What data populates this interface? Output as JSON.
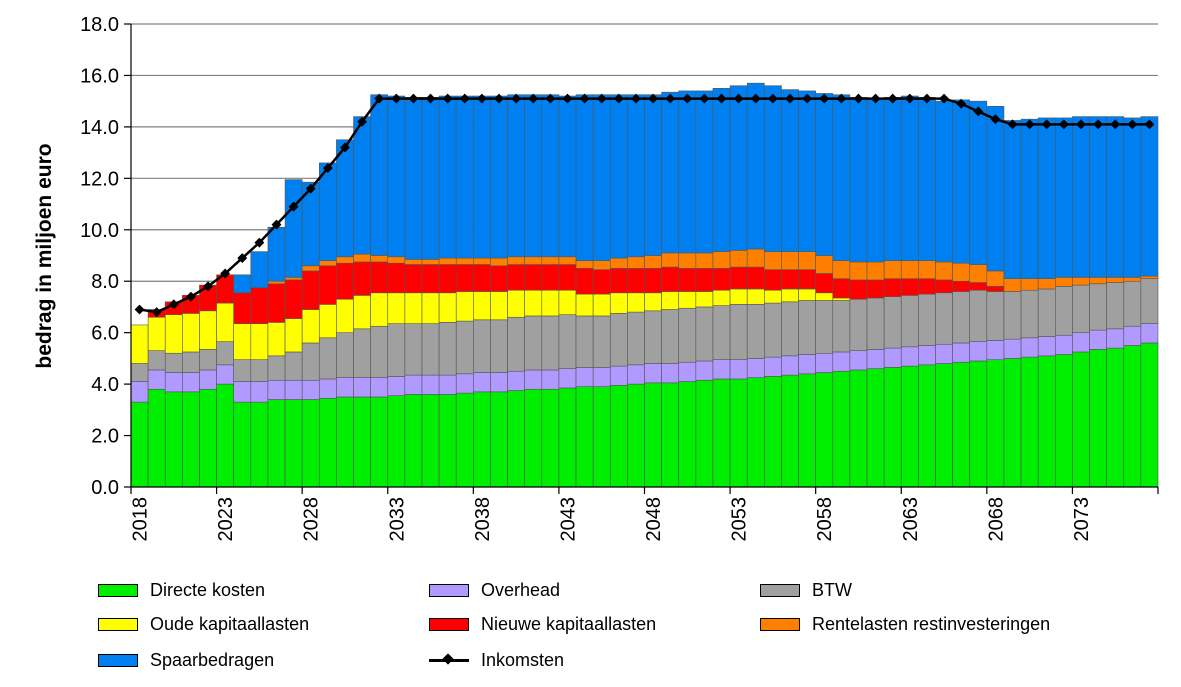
{
  "chart_data": {
    "type": "bar",
    "stacked": true,
    "title": "",
    "xlabel": "",
    "ylabel": "bedrag in miljoen euro",
    "ylim": [
      0,
      18
    ],
    "yticks": [
      "0.0",
      "2.0",
      "4.0",
      "6.0",
      "8.0",
      "10.0",
      "12.0",
      "14.0",
      "16.0",
      "18.0"
    ],
    "xticks": [
      "2018",
      "2023",
      "2028",
      "2033",
      "2038",
      "2043",
      "2048",
      "2053",
      "2058",
      "2063",
      "2068",
      "2073"
    ],
    "grid": "horizontal",
    "legend_position": "bottom",
    "x": [
      2018,
      2019,
      2020,
      2021,
      2022,
      2023,
      2024,
      2025,
      2026,
      2027,
      2028,
      2029,
      2030,
      2031,
      2032,
      2033,
      2034,
      2035,
      2036,
      2037,
      2038,
      2039,
      2040,
      2041,
      2042,
      2043,
      2044,
      2045,
      2046,
      2047,
      2048,
      2049,
      2050,
      2051,
      2052,
      2053,
      2054,
      2055,
      2056,
      2057,
      2058,
      2059,
      2060,
      2061,
      2062,
      2063,
      2064,
      2065,
      2066,
      2067,
      2068,
      2069,
      2070,
      2071,
      2072,
      2073,
      2074,
      2075,
      2076,
      2077
    ],
    "series": [
      {
        "name": "Directe kosten",
        "color": "#00ee00",
        "values": [
          3.3,
          3.8,
          3.7,
          3.7,
          3.8,
          4.0,
          3.3,
          3.3,
          3.4,
          3.4,
          3.4,
          3.45,
          3.5,
          3.5,
          3.5,
          3.55,
          3.6,
          3.6,
          3.6,
          3.65,
          3.7,
          3.7,
          3.75,
          3.8,
          3.8,
          3.85,
          3.9,
          3.9,
          3.95,
          4.0,
          4.05,
          4.05,
          4.1,
          4.15,
          4.2,
          4.2,
          4.25,
          4.3,
          4.35,
          4.4,
          4.45,
          4.5,
          4.55,
          4.6,
          4.65,
          4.7,
          4.75,
          4.8,
          4.85,
          4.9,
          4.95,
          5.0,
          5.05,
          5.1,
          5.15,
          5.25,
          5.35,
          5.4,
          5.5,
          5.6
        ]
      },
      {
        "name": "Overhead",
        "color": "#b09aff",
        "values": [
          0.8,
          0.75,
          0.75,
          0.75,
          0.75,
          0.75,
          0.8,
          0.8,
          0.75,
          0.75,
          0.75,
          0.75,
          0.75,
          0.75,
          0.75,
          0.75,
          0.75,
          0.75,
          0.75,
          0.75,
          0.75,
          0.75,
          0.75,
          0.75,
          0.75,
          0.75,
          0.75,
          0.75,
          0.75,
          0.75,
          0.75,
          0.75,
          0.75,
          0.75,
          0.75,
          0.75,
          0.75,
          0.75,
          0.75,
          0.75,
          0.75,
          0.75,
          0.75,
          0.75,
          0.75,
          0.75,
          0.75,
          0.75,
          0.75,
          0.75,
          0.75,
          0.75,
          0.75,
          0.75,
          0.75,
          0.75,
          0.75,
          0.75,
          0.75,
          0.75
        ]
      },
      {
        "name": "BTW",
        "color": "#a0a0a0",
        "values": [
          0.7,
          0.75,
          0.75,
          0.8,
          0.8,
          0.9,
          0.85,
          0.85,
          0.95,
          1.1,
          1.45,
          1.6,
          1.75,
          1.9,
          2.0,
          2.05,
          2.0,
          2.0,
          2.05,
          2.05,
          2.05,
          2.05,
          2.1,
          2.1,
          2.1,
          2.1,
          2.0,
          2.0,
          2.05,
          2.05,
          2.05,
          2.1,
          2.1,
          2.1,
          2.1,
          2.15,
          2.1,
          2.1,
          2.1,
          2.1,
          2.05,
          2.0,
          2.0,
          2.0,
          2.0,
          2.0,
          2.0,
          2.0,
          2.0,
          2.0,
          1.9,
          1.85,
          1.85,
          1.85,
          1.9,
          1.85,
          1.8,
          1.8,
          1.75,
          1.75
        ]
      },
      {
        "name": "Oude kapitaallasten",
        "color": "#ffff00",
        "values": [
          1.5,
          1.3,
          1.5,
          1.5,
          1.5,
          1.5,
          1.4,
          1.4,
          1.3,
          1.3,
          1.3,
          1.3,
          1.3,
          1.3,
          1.3,
          1.2,
          1.2,
          1.2,
          1.15,
          1.15,
          1.1,
          1.1,
          1.05,
          1.0,
          1.0,
          0.95,
          0.85,
          0.85,
          0.8,
          0.75,
          0.7,
          0.7,
          0.65,
          0.6,
          0.6,
          0.6,
          0.6,
          0.5,
          0.5,
          0.45,
          0.3,
          0.1,
          0,
          0,
          0,
          0,
          0,
          0,
          0,
          0,
          0,
          0,
          0,
          0,
          0,
          0,
          0,
          0,
          0,
          0
        ]
      },
      {
        "name": "Nieuwe kapitaallasten",
        "color": "#ff0000",
        "values": [
          0,
          0.3,
          0.5,
          0.7,
          1.0,
          1.1,
          1.2,
          1.4,
          1.5,
          1.5,
          1.5,
          1.5,
          1.4,
          1.3,
          1.2,
          1.15,
          1.1,
          1.1,
          1.1,
          1.05,
          1.05,
          1.0,
          1.0,
          1.0,
          1.0,
          1.0,
          1.0,
          0.95,
          0.95,
          0.95,
          0.95,
          0.95,
          0.9,
          0.9,
          0.85,
          0.85,
          0.85,
          0.8,
          0.75,
          0.75,
          0.75,
          0.75,
          0.75,
          0.7,
          0.7,
          0.65,
          0.6,
          0.5,
          0.4,
          0.3,
          0.2,
          0,
          0,
          0,
          0,
          0,
          0,
          0,
          0,
          0
        ]
      },
      {
        "name": "Rentelasten restinvesteringen",
        "color": "#ff8000",
        "values": [
          0,
          0,
          0,
          0,
          0,
          0,
          0,
          0,
          0.1,
          0.1,
          0.2,
          0.2,
          0.25,
          0.3,
          0.25,
          0.25,
          0.2,
          0.2,
          0.25,
          0.25,
          0.25,
          0.3,
          0.3,
          0.3,
          0.3,
          0.3,
          0.3,
          0.35,
          0.4,
          0.45,
          0.5,
          0.55,
          0.6,
          0.6,
          0.65,
          0.65,
          0.7,
          0.7,
          0.7,
          0.7,
          0.7,
          0.7,
          0.7,
          0.7,
          0.7,
          0.7,
          0.7,
          0.7,
          0.7,
          0.7,
          0.6,
          0.5,
          0.45,
          0.4,
          0.35,
          0.3,
          0.25,
          0.2,
          0.15,
          0.1
        ]
      },
      {
        "name": "Spaarbedragen",
        "color": "#0080f0",
        "values": [
          0,
          0,
          0,
          0,
          0,
          0,
          0.7,
          1.4,
          2.1,
          3.8,
          3.25,
          3.8,
          4.55,
          5.35,
          6.25,
          6.25,
          6.3,
          6.3,
          6.3,
          6.3,
          6.3,
          6.3,
          6.3,
          6.3,
          6.3,
          6.25,
          6.45,
          6.45,
          6.35,
          6.3,
          6.25,
          6.25,
          6.3,
          6.3,
          6.35,
          6.4,
          6.45,
          6.45,
          6.3,
          6.25,
          6.3,
          6.45,
          6.4,
          6.35,
          6.35,
          6.4,
          6.35,
          6.25,
          6.35,
          6.35,
          6.4,
          6.15,
          6.2,
          6.25,
          6.2,
          6.25,
          6.25,
          6.25,
          6.2,
          6.2
        ]
      }
    ],
    "line_series": {
      "name": "Inkomsten",
      "color": "#000000",
      "values": [
        6.9,
        6.8,
        7.1,
        7.4,
        7.8,
        8.3,
        8.9,
        9.5,
        10.2,
        10.9,
        11.6,
        12.4,
        13.2,
        14.2,
        15.1,
        15.1,
        15.1,
        15.1,
        15.1,
        15.1,
        15.1,
        15.1,
        15.1,
        15.1,
        15.1,
        15.1,
        15.1,
        15.1,
        15.1,
        15.1,
        15.1,
        15.1,
        15.1,
        15.1,
        15.1,
        15.1,
        15.1,
        15.1,
        15.1,
        15.1,
        15.1,
        15.1,
        15.1,
        15.1,
        15.1,
        15.1,
        15.1,
        15.1,
        14.9,
        14.6,
        14.3,
        14.1,
        14.1,
        14.1,
        14.1,
        14.1,
        14.1,
        14.1,
        14.1,
        14.1
      ]
    }
  },
  "legend": {
    "items": [
      {
        "label": "Directe kosten",
        "color": "#00ee00",
        "kind": "swatch"
      },
      {
        "label": "Overhead",
        "color": "#b09aff",
        "kind": "swatch"
      },
      {
        "label": "BTW",
        "color": "#a0a0a0",
        "kind": "swatch"
      },
      {
        "label": "Oude kapitaallasten",
        "color": "#ffff00",
        "kind": "swatch"
      },
      {
        "label": "Nieuwe kapitaallasten",
        "color": "#ff0000",
        "kind": "swatch"
      },
      {
        "label": "Rentelasten restinvesteringen",
        "color": "#ff8000",
        "kind": "swatch"
      },
      {
        "label": "Spaarbedragen",
        "color": "#0080f0",
        "kind": "swatch"
      },
      {
        "label": "Inkomsten",
        "color": "#000000",
        "kind": "line"
      }
    ]
  }
}
